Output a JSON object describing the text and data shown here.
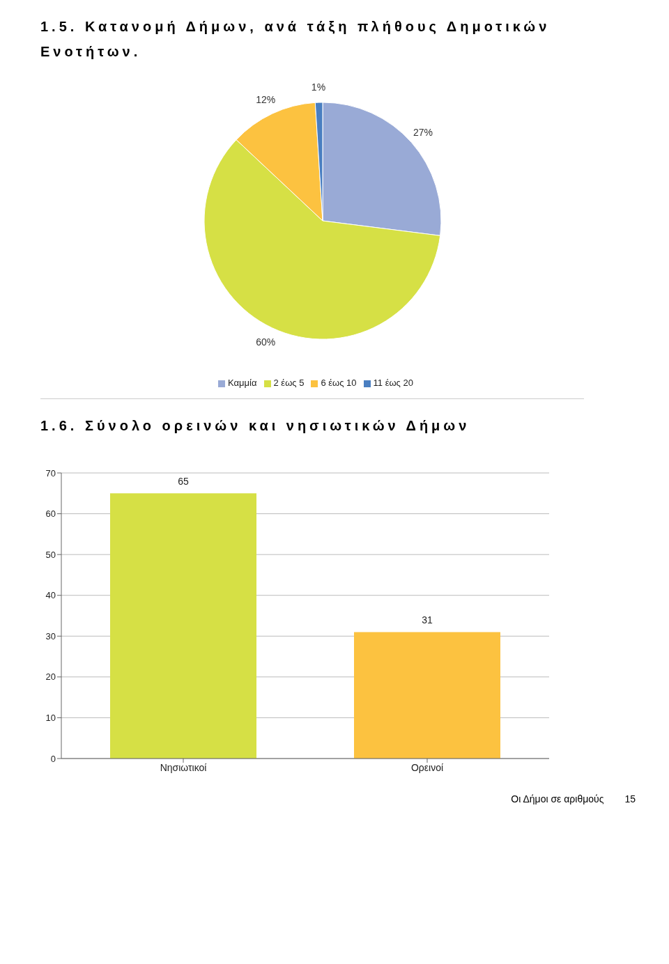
{
  "chart_data": [
    {
      "type": "pie",
      "title": "1.5. Κατανομή Δήμων, ανά τάξη πλήθους Δημοτικών Ενοτήτων.",
      "categories": [
        "Καμμία",
        "2 έως 5",
        "6 έως 10",
        "11 έως 20"
      ],
      "values": [
        27,
        60,
        12,
        1
      ],
      "colors": [
        "#99aad6",
        "#d6e045",
        "#fcc240",
        "#4a7fc1"
      ],
      "value_labels": [
        "27%",
        "60%",
        "12%",
        "1%"
      ],
      "legend": "bottom"
    },
    {
      "type": "bar",
      "title": "1.6. Σύνολο ορεινών και νησιωτικών Δήμων",
      "categories": [
        "Νησιωτικοί",
        "Ορεινοί"
      ],
      "values": [
        65,
        31
      ],
      "colors": [
        "#d6e045",
        "#fcc240"
      ],
      "ylim": [
        0,
        70
      ],
      "yticks": [
        0,
        10,
        20,
        30,
        40,
        50,
        60,
        70
      ],
      "grid": "y",
      "data_labels": true,
      "annotations": [
        "Οι Δήμοι σε αριθμούς",
        "15"
      ]
    }
  ]
}
